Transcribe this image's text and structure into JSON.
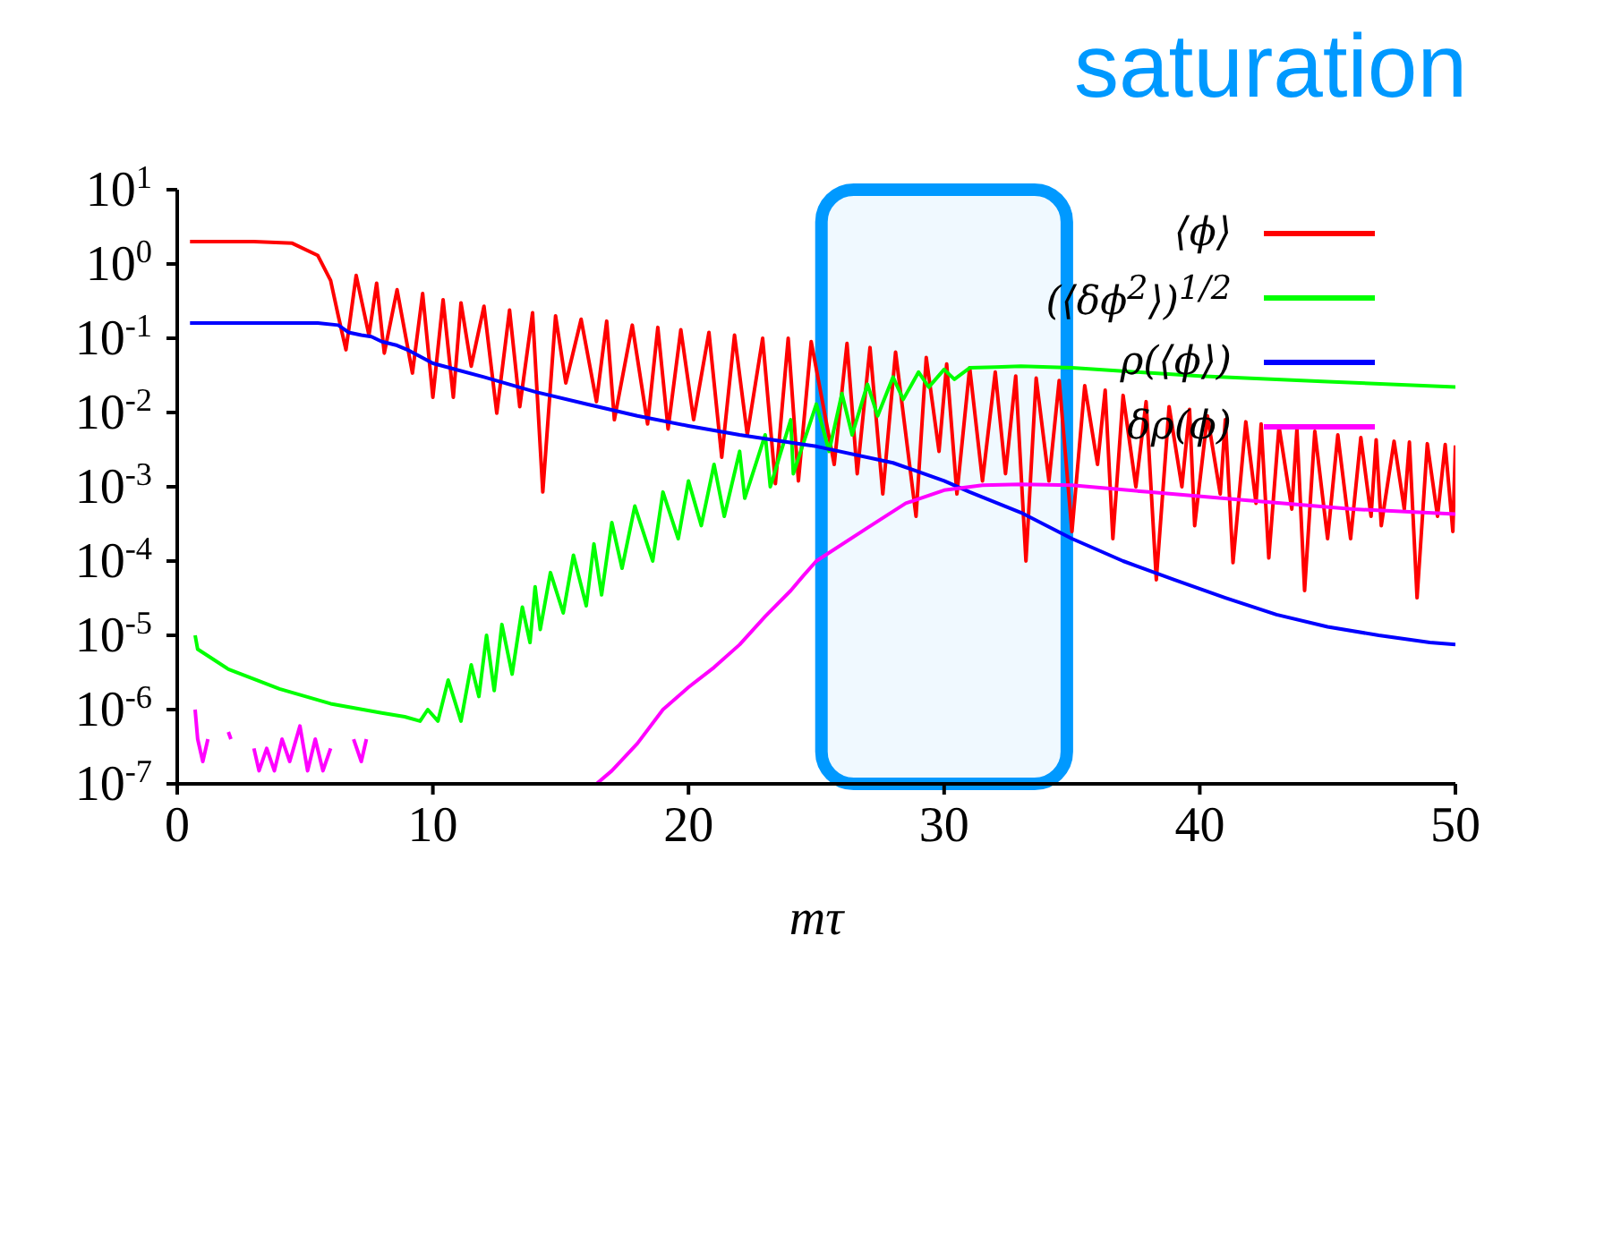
{
  "chart_data": {
    "type": "line",
    "xlabel": "mτ",
    "xlim": [
      0,
      50
    ],
    "xticks": [
      0,
      10,
      20,
      30,
      40,
      50
    ],
    "ylim": [
      1e-07,
      10
    ],
    "log": "y",
    "yticks": [
      {
        "value": 1e-07,
        "label": "10$^{-7}$"
      },
      {
        "value": 1e-06,
        "label": "10$^{-6}$"
      },
      {
        "value": 1e-05,
        "label": "10$^{-5}$"
      },
      {
        "value": 0.0001,
        "label": "10$^{-4}$"
      },
      {
        "value": 0.001,
        "label": "10$^{-3}$"
      },
      {
        "value": 0.01,
        "label": "10$^{-2}$"
      },
      {
        "value": 0.1,
        "label": "10$^{-1}$"
      },
      {
        "value": 1,
        "label": "10$^{0}$"
      },
      {
        "value": 10,
        "label": "10$^{1}$"
      }
    ],
    "legend": "top right",
    "marker": "none",
    "line_style": "solid",
    "bands": [
      {
        "axis": "x",
        "from": 25.2,
        "to": 34.8,
        "label": "saturation",
        "color": "#0099ff"
      }
    ],
    "series": [
      {
        "name": "⟨ϕ⟩",
        "color": "#ff0000",
        "x": [
          0.5,
          3,
          4.5,
          5.5,
          6,
          6.3,
          6.6,
          7.0,
          7.5,
          7.8,
          8.1,
          8.6,
          9.2,
          9.6,
          10.0,
          10.4,
          10.8,
          11.1,
          11.5,
          12.0,
          12.5,
          13.0,
          13.4,
          13.9,
          14.3,
          14.8,
          15.2,
          15.8,
          16.4,
          16.8,
          17.1,
          17.8,
          18.4,
          18.8,
          19.2,
          19.7,
          20.2,
          20.8,
          21.3,
          21.8,
          22.3,
          22.9,
          23.4,
          23.9,
          24.3,
          24.8,
          25.7,
          26.2,
          26.6,
          27.1,
          27.6,
          28.1,
          28.9,
          29.3,
          29.8,
          30.1,
          30.5,
          31.0,
          31.5,
          32.0,
          32.4,
          32.8,
          33.2,
          33.6,
          34.1,
          34.5,
          35.0,
          35.5,
          36.0,
          36.3,
          36.6,
          37.0,
          37.5,
          37.9,
          38.3,
          38.8,
          39.3,
          39.6,
          39.8,
          40.3,
          40.8,
          41.0,
          41.3,
          41.8,
          42.2,
          42.4,
          42.7,
          43.1,
          43.6,
          43.8,
          44.1,
          44.5,
          45.0,
          45.4,
          45.9,
          46.3,
          46.7,
          46.9,
          47.1,
          47.6,
          48.0,
          48.2,
          48.5,
          48.9,
          49.3,
          49.6,
          49.9,
          50
        ],
        "values": [
          2,
          2,
          1.9,
          1.3,
          0.6,
          0.2,
          0.07,
          0.7,
          0.11,
          0.55,
          0.063,
          0.45,
          0.034,
          0.4,
          0.016,
          0.33,
          0.016,
          0.3,
          0.042,
          0.27,
          0.0098,
          0.24,
          0.012,
          0.22,
          0.00085,
          0.2,
          0.025,
          0.18,
          0.014,
          0.17,
          0.008,
          0.15,
          0.007,
          0.14,
          0.006,
          0.13,
          0.008,
          0.12,
          0.0025,
          0.11,
          0.005,
          0.1,
          0.0011,
          0.1,
          0.0012,
          0.09,
          0.002,
          0.085,
          0.0015,
          0.075,
          0.0008,
          0.065,
          0.0004,
          0.055,
          0.003,
          0.045,
          0.0008,
          0.04,
          0.0012,
          0.035,
          0.0015,
          0.031,
          0.0001,
          0.029,
          0.0012,
          0.027,
          0.00025,
          0.023,
          0.002,
          0.02,
          0.0002,
          0.017,
          0.001,
          0.014,
          5.6e-05,
          0.012,
          0.001,
          0.011,
          0.0003,
          0.009,
          0.0008,
          0.008,
          9.5e-05,
          0.0075,
          0.0006,
          0.007,
          0.00011,
          0.0065,
          0.0005,
          0.006,
          4e-05,
          0.0056,
          0.0002,
          0.005,
          0.0002,
          0.0046,
          0.0004,
          0.0043,
          0.0003,
          0.0041,
          0.0005,
          0.004,
          3.2e-05,
          0.0038,
          0.0004,
          0.0037,
          0.00025,
          0.0036
        ]
      },
      {
        "name": "(⟨δϕ$^{2}$⟩)$^{1/2}$",
        "color": "#00ff00",
        "x": [
          0.7,
          0.8,
          2,
          4,
          6,
          8,
          8.9,
          9.5,
          9.8,
          10.2,
          10.6,
          11.1,
          11.5,
          11.8,
          12.1,
          12.4,
          12.7,
          13.1,
          13.5,
          13.8,
          14.0,
          14.2,
          14.6,
          15.1,
          15.5,
          16.0,
          16.3,
          16.6,
          17.0,
          17.4,
          17.9,
          18.6,
          19.0,
          19.6,
          20.0,
          20.5,
          21.0,
          21.4,
          22.0,
          22.2,
          23.0,
          23.2,
          24.0,
          24.1,
          25.0,
          25.5,
          26,
          26.4,
          27,
          27.4,
          28,
          28.4,
          29,
          29.4,
          30,
          30.4,
          31,
          32,
          33,
          35,
          37,
          40,
          45,
          50
        ],
        "values": [
          1e-05,
          6.5e-06,
          3.5e-06,
          1.9e-06,
          1.2e-06,
          9e-07,
          8e-07,
          7e-07,
          1e-06,
          7e-07,
          2.5e-06,
          7e-07,
          4e-06,
          1.5e-06,
          1e-05,
          1.8e-06,
          1.4e-05,
          3e-06,
          2.4e-05,
          8e-06,
          4.5e-05,
          1.2e-05,
          7e-05,
          2e-05,
          0.00012,
          2.5e-05,
          0.00017,
          3.5e-05,
          0.00033,
          8e-05,
          0.00055,
          0.0001,
          0.00085,
          0.0002,
          0.0012,
          0.0003,
          0.002,
          0.0004,
          0.003,
          0.0007,
          0.005,
          0.001,
          0.008,
          0.0015,
          0.013,
          0.003,
          0.018,
          0.005,
          0.024,
          0.009,
          0.03,
          0.015,
          0.035,
          0.022,
          0.038,
          0.028,
          0.04,
          0.041,
          0.042,
          0.04,
          0.036,
          0.031,
          0.026,
          0.022
        ]
      },
      {
        "name": "ρ(⟨ϕ⟩)",
        "color": "#0000ff",
        "x": [
          0.5,
          5.5,
          6.3,
          6.7,
          7.2,
          7.6,
          8,
          8.6,
          9,
          10,
          12,
          14,
          16,
          18,
          20,
          22,
          24.5,
          25,
          28,
          30,
          31,
          33,
          35,
          37,
          39,
          41,
          43,
          45,
          47,
          49,
          50
        ],
        "values": [
          0.16,
          0.16,
          0.15,
          0.12,
          0.11,
          0.105,
          0.09,
          0.08,
          0.07,
          0.046,
          0.03,
          0.019,
          0.013,
          0.009,
          0.0066,
          0.005,
          0.0037,
          0.0035,
          0.0021,
          0.0012,
          0.00085,
          0.00045,
          0.0002,
          0.0001,
          5.6e-05,
          3.2e-05,
          1.9e-05,
          1.3e-05,
          1e-05,
          8e-06,
          7.5e-06
        ]
      },
      {
        "name": "δρ(ϕ)",
        "color": "#ff00ff",
        "x": [
          0.7,
          0.8,
          1,
          1.2,
          1.6,
          2,
          2.1,
          2.5,
          3,
          3.2,
          3.5,
          3.8,
          4.1,
          4.4,
          4.8,
          5.1,
          5.4,
          5.7,
          6,
          6.3,
          6.9,
          7.2,
          7.4,
          7.6,
          16.4,
          17,
          18,
          19,
          20,
          21,
          22,
          23,
          24,
          24.5,
          25,
          27,
          28.5,
          30,
          31.5,
          33,
          35,
          38,
          42,
          46,
          50
        ],
        "values": [
          1e-06,
          4e-07,
          2e-07,
          4e-07,
          null,
          5e-07,
          4e-07,
          null,
          3e-07,
          1.5e-07,
          3e-07,
          1.5e-07,
          4e-07,
          2e-07,
          6e-07,
          1.5e-07,
          4e-07,
          1.5e-07,
          3e-07,
          null,
          4e-07,
          2e-07,
          4e-07,
          null,
          1e-07,
          1.5e-07,
          3.5e-07,
          1e-06,
          2e-06,
          3.7e-06,
          7.5e-06,
          1.8e-05,
          4e-05,
          6.4e-05,
          0.0001,
          0.00028,
          0.0006,
          0.0009,
          0.00105,
          0.00108,
          0.00105,
          0.00085,
          0.00065,
          0.0005,
          0.00043
        ]
      }
    ]
  }
}
